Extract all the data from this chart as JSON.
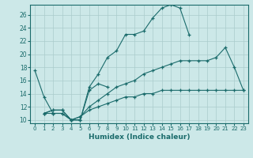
{
  "xlabel": "Humidex (Indice chaleur)",
  "background_color": "#cce8e8",
  "grid_color": "#aacccc",
  "line_color": "#1a6b6b",
  "xlim": [
    -0.5,
    23.5
  ],
  "ylim": [
    9.5,
    27.5
  ],
  "xticks": [
    0,
    1,
    2,
    3,
    4,
    5,
    6,
    7,
    8,
    9,
    10,
    11,
    12,
    13,
    14,
    15,
    16,
    17,
    18,
    19,
    20,
    21,
    22,
    23
  ],
  "yticks": [
    10,
    12,
    14,
    16,
    18,
    20,
    22,
    24,
    26
  ],
  "lines": [
    {
      "x": [
        0,
        1,
        2,
        3,
        4,
        5,
        6,
        7,
        8,
        9,
        10,
        11,
        12,
        13,
        14,
        15,
        16,
        17
      ],
      "y": [
        17.5,
        13.5,
        11.0,
        11.0,
        10.0,
        10.0,
        15.0,
        17.0,
        19.5,
        20.5,
        23.0,
        23.0,
        23.5,
        25.5,
        27.0,
        27.5,
        27.0,
        23.0
      ]
    },
    {
      "x": [
        1,
        2,
        3,
        4,
        5,
        6,
        7,
        8,
        9,
        10,
        11,
        12,
        13,
        14,
        15,
        16,
        17,
        18,
        19,
        20,
        21,
        22,
        23
      ],
      "y": [
        11.0,
        11.5,
        11.5,
        10.0,
        10.5,
        12.0,
        13.0,
        14.0,
        15.0,
        15.5,
        16.0,
        17.0,
        17.5,
        18.0,
        18.5,
        19.0,
        19.0,
        19.0,
        19.0,
        19.5,
        21.0,
        18.0,
        14.5
      ]
    },
    {
      "x": [
        1,
        2,
        3,
        4,
        5,
        6,
        7,
        8,
        9,
        10,
        11,
        12,
        13,
        14,
        15,
        16,
        17,
        18,
        19,
        20,
        21,
        22,
        23
      ],
      "y": [
        11.0,
        11.5,
        11.5,
        10.0,
        10.5,
        11.5,
        12.0,
        12.5,
        13.0,
        13.5,
        13.5,
        14.0,
        14.0,
        14.5,
        14.5,
        14.5,
        14.5,
        14.5,
        14.5,
        14.5,
        14.5,
        14.5,
        14.5
      ]
    },
    {
      "comment": "Line4: starts x=1 y=11, dips x=4-5, jumps to x=6 ~14.5, ends x=8 ~15",
      "x": [
        1,
        2,
        3,
        4,
        5,
        6,
        7,
        8
      ],
      "y": [
        11.0,
        11.0,
        11.0,
        10.0,
        10.0,
        14.5,
        15.5,
        15.0
      ]
    }
  ]
}
